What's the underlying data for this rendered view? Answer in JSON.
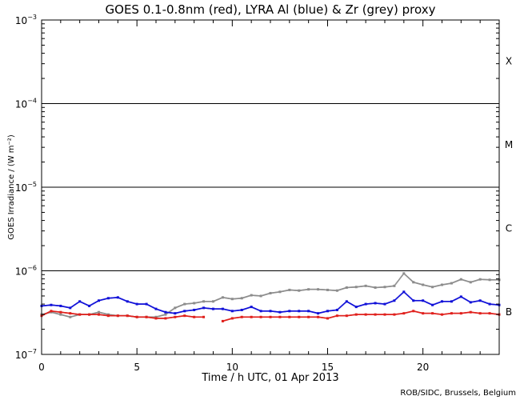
{
  "chart_data": {
    "type": "scatter",
    "title": "GOES 0.1-0.8nm (red), LYRA Al (blue) & Zr (grey) proxy",
    "xlabel": "Time / h UTC, 01 Apr 2013",
    "ylabel": "GOES Irradiance / (W m⁻²)",
    "credit": "ROB/SIDC, Brussels, Belgium",
    "x_range": [
      0,
      24
    ],
    "y_range": [
      1e-07,
      0.001
    ],
    "y_scale": "log",
    "x_ticks": [
      "0",
      "5",
      "10",
      "15",
      "20"
    ],
    "y_ticks": [
      {
        "base": "10",
        "exp": "-7"
      },
      {
        "base": "10",
        "exp": "-6"
      },
      {
        "base": "10",
        "exp": "-5"
      },
      {
        "base": "10",
        "exp": "-4"
      },
      {
        "base": "10",
        "exp": "-3"
      }
    ],
    "class_labels": [
      {
        "label": "X",
        "value": 0.00032
      },
      {
        "label": "M",
        "value": 3.2e-05
      },
      {
        "label": "C",
        "value": 3.2e-06
      },
      {
        "label": "B",
        "value": 3.2e-07
      }
    ],
    "threshold_lines": [
      1e-06,
      1e-05,
      0.0001
    ],
    "series": [
      {
        "name": "LYRA Zr proxy",
        "color": "#8c8c8c",
        "x": [
          0,
          0.5,
          1,
          1.5,
          2,
          2.5,
          3,
          3.5,
          4,
          4.5,
          5,
          5.5,
          6,
          6.5,
          7,
          7.5,
          8,
          8.5,
          9,
          9.5,
          10,
          10.5,
          11,
          11.5,
          12,
          12.5,
          13,
          13.5,
          14,
          14.5,
          15,
          15.5,
          16,
          16.5,
          17,
          17.5,
          18,
          18.5,
          19,
          19.5,
          20,
          20.5,
          21,
          21.5,
          22,
          22.5,
          23,
          23.5,
          24
        ],
        "y": [
          3e-07,
          3.2e-07,
          3e-07,
          2.8e-07,
          3e-07,
          3e-07,
          3.2e-07,
          3e-07,
          2.9e-07,
          2.9e-07,
          2.8e-07,
          2.8e-07,
          2.8e-07,
          3e-07,
          3.6e-07,
          4e-07,
          4.1e-07,
          4.3e-07,
          4.3e-07,
          4.8e-07,
          4.6e-07,
          4.7e-07,
          5.1e-07,
          5e-07,
          5.4e-07,
          5.6e-07,
          5.9e-07,
          5.8e-07,
          6e-07,
          6e-07,
          5.9e-07,
          5.8e-07,
          6.3e-07,
          6.4e-07,
          6.6e-07,
          6.3e-07,
          6.4e-07,
          6.6e-07,
          9.3e-07,
          7.3e-07,
          6.8e-07,
          6.4e-07,
          6.8e-07,
          7.1e-07,
          7.9e-07,
          7.3e-07,
          7.9e-07,
          7.8e-07,
          7.8e-07
        ]
      },
      {
        "name": "LYRA Al proxy",
        "color": "#1010d8",
        "x": [
          0,
          0.5,
          1,
          1.5,
          2,
          2.5,
          3,
          3.5,
          4,
          4.5,
          5,
          5.5,
          6,
          6.5,
          7,
          7.5,
          8,
          8.5,
          9,
          9.5,
          10,
          10.5,
          11,
          11.5,
          12,
          12.5,
          13,
          13.5,
          14,
          14.5,
          15,
          15.5,
          16,
          16.5,
          17,
          17.5,
          18,
          18.5,
          19,
          19.5,
          20,
          20.5,
          21,
          21.5,
          22,
          22.5,
          23,
          23.5,
          24
        ],
        "y": [
          3.8e-07,
          3.9e-07,
          3.8e-07,
          3.6e-07,
          4.3e-07,
          3.8e-07,
          4.4e-07,
          4.7e-07,
          4.8e-07,
          4.3e-07,
          4e-07,
          4e-07,
          3.5e-07,
          3.2e-07,
          3.1e-07,
          3.3e-07,
          3.4e-07,
          3.6e-07,
          3.5e-07,
          3.5e-07,
          3.3e-07,
          3.4e-07,
          3.7e-07,
          3.3e-07,
          3.3e-07,
          3.2e-07,
          3.3e-07,
          3.3e-07,
          3.3e-07,
          3.1e-07,
          3.3e-07,
          3.4e-07,
          4.3e-07,
          3.7e-07,
          4e-07,
          4.1e-07,
          4e-07,
          4.4e-07,
          5.6e-07,
          4.4e-07,
          4.4e-07,
          3.9e-07,
          4.3e-07,
          4.3e-07,
          4.9e-07,
          4.2e-07,
          4.4e-07,
          4e-07,
          3.9e-07
        ]
      },
      {
        "name": "GOES 0.1-0.8nm",
        "color": "#e0201c",
        "x": [
          0,
          0.5,
          1,
          1.5,
          2,
          2.5,
          3,
          3.5,
          4,
          4.5,
          5,
          5.5,
          6,
          6.5,
          7,
          7.5,
          8,
          8.5,
          9.5,
          10,
          10.5,
          11,
          11.5,
          12,
          12.5,
          13,
          13.5,
          14,
          14.5,
          15,
          15.5,
          16,
          16.5,
          17,
          17.5,
          18,
          18.5,
          19,
          19.5,
          20,
          20.5,
          21,
          21.5,
          22,
          22.5,
          23,
          23.5,
          24
        ],
        "y": [
          2.9e-07,
          3.3e-07,
          3.2e-07,
          3.1e-07,
          3e-07,
          3e-07,
          3e-07,
          2.9e-07,
          2.9e-07,
          2.9e-07,
          2.8e-07,
          2.8e-07,
          2.7e-07,
          2.7e-07,
          2.8e-07,
          2.9e-07,
          2.8e-07,
          2.8e-07,
          2.5e-07,
          2.7e-07,
          2.8e-07,
          2.8e-07,
          2.8e-07,
          2.8e-07,
          2.8e-07,
          2.8e-07,
          2.8e-07,
          2.8e-07,
          2.8e-07,
          2.7e-07,
          2.9e-07,
          2.9e-07,
          3e-07,
          3e-07,
          3e-07,
          3e-07,
          3e-07,
          3.1e-07,
          3.3e-07,
          3.1e-07,
          3.1e-07,
          3e-07,
          3.1e-07,
          3.1e-07,
          3.2e-07,
          3.1e-07,
          3.1e-07,
          3e-07
        ]
      }
    ]
  }
}
